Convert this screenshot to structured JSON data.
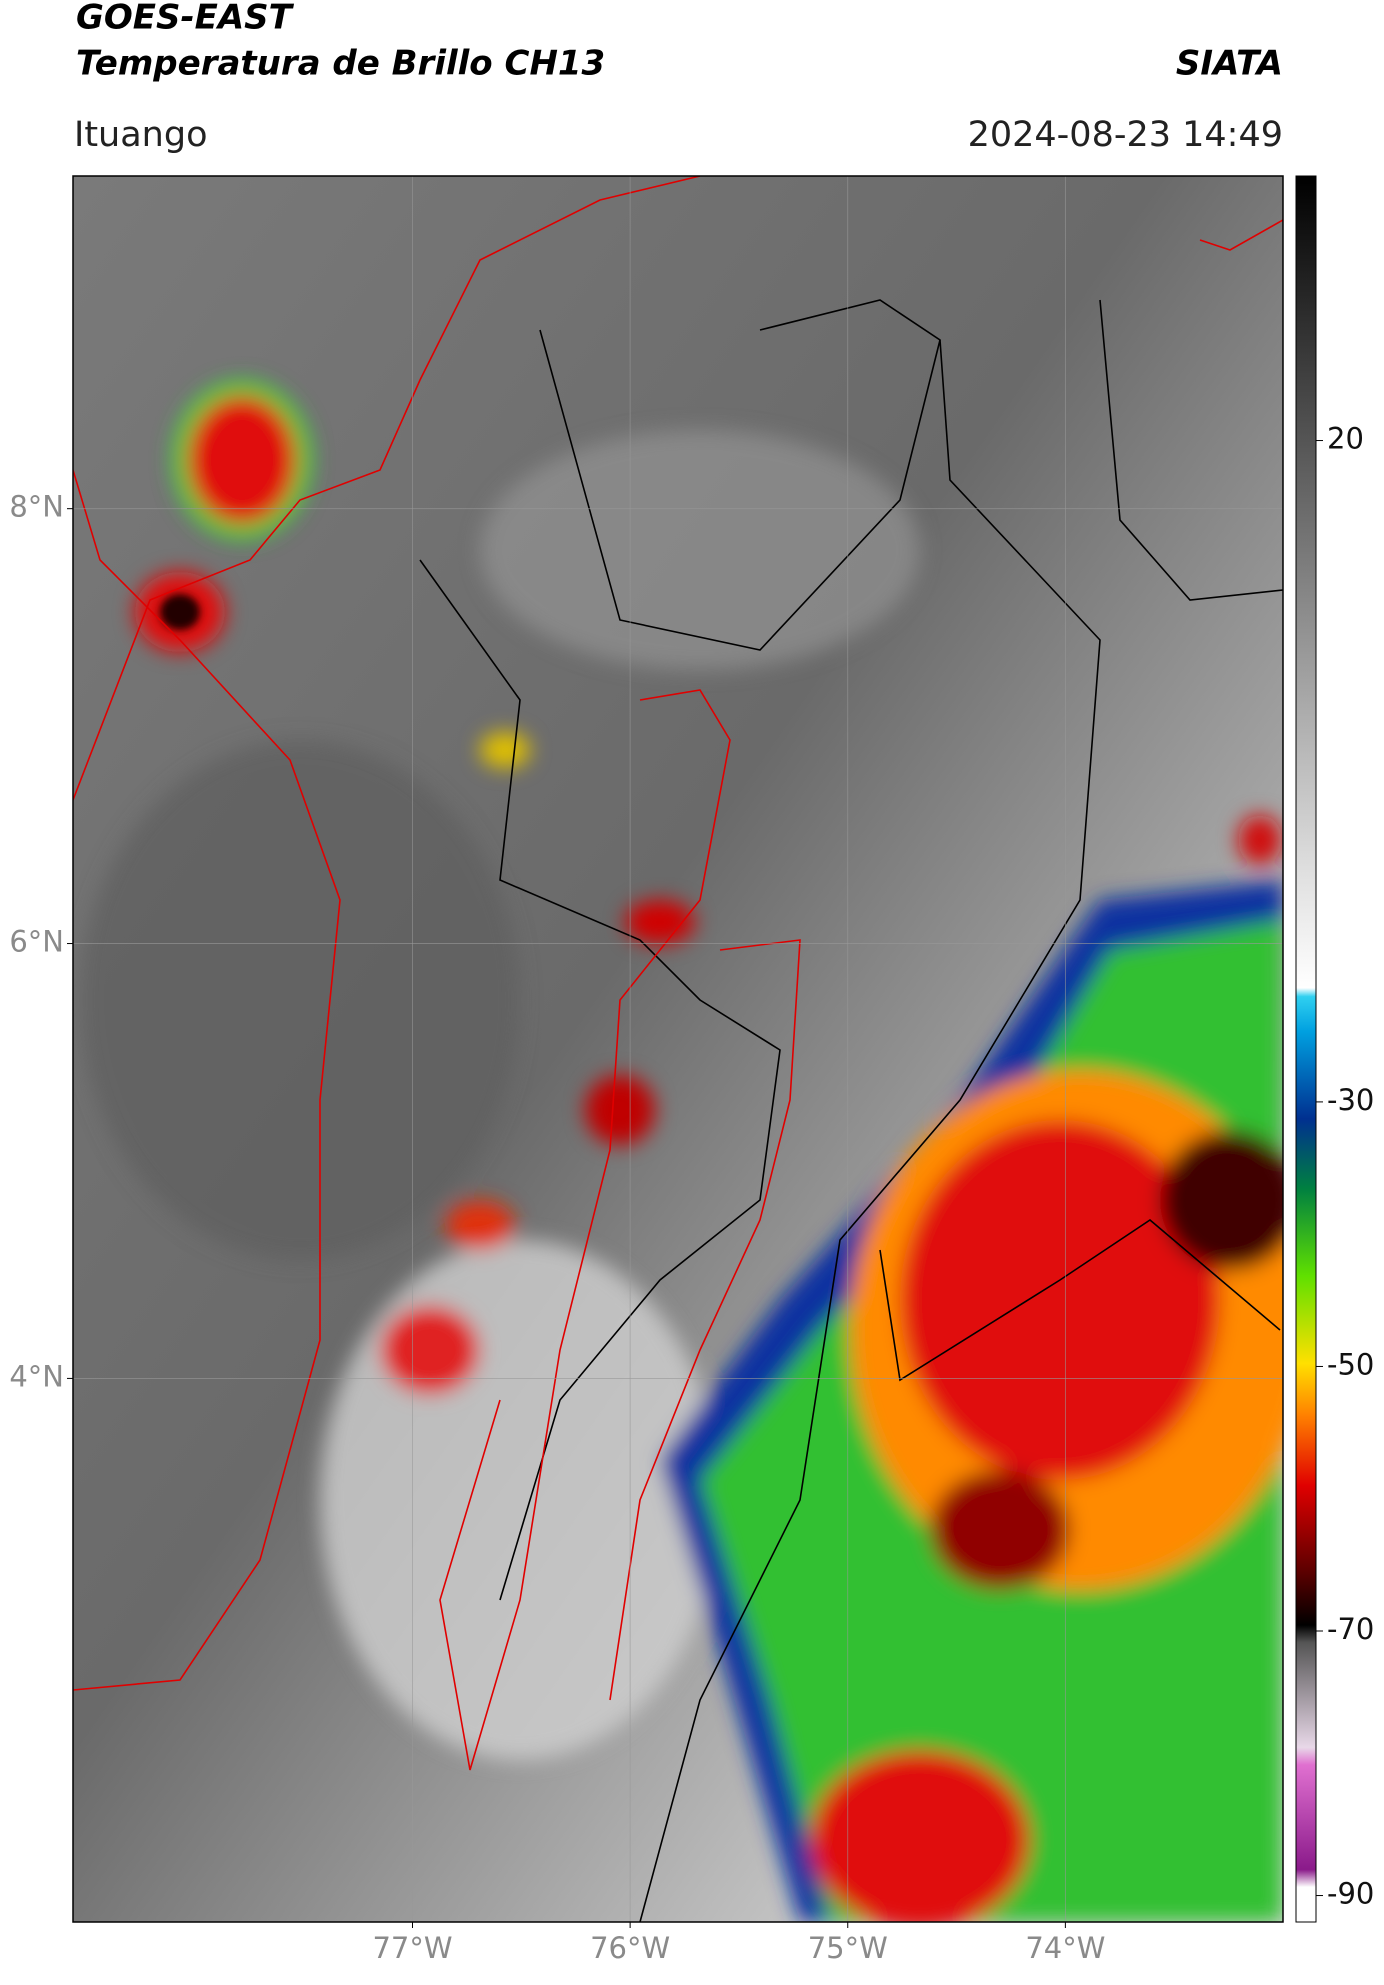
{
  "header": {
    "satellite": "GOES-EAST",
    "product": "Temperatura de Brillo CH13",
    "agency": "SIATA",
    "location": "Ituango",
    "datetime": "2024-08-23 14:49"
  },
  "map": {
    "lat_range": [
      1.5,
      9.53
    ],
    "lon_range": [
      -78.56,
      -73.0
    ],
    "lat_ticks": [
      {
        "value": 8,
        "label": "8°N"
      },
      {
        "value": 6,
        "label": "6°N"
      },
      {
        "value": 4,
        "label": "4°N"
      }
    ],
    "lon_ticks": [
      {
        "value": -77,
        "label": "77°W"
      },
      {
        "value": -76,
        "label": "76°W"
      },
      {
        "value": -75,
        "label": "75°W"
      },
      {
        "value": -74,
        "label": "74°W"
      }
    ]
  },
  "colorbar": {
    "range": [
      -92,
      40
    ],
    "ticks": [
      20,
      -30,
      -50,
      -70,
      -90
    ]
  }
}
